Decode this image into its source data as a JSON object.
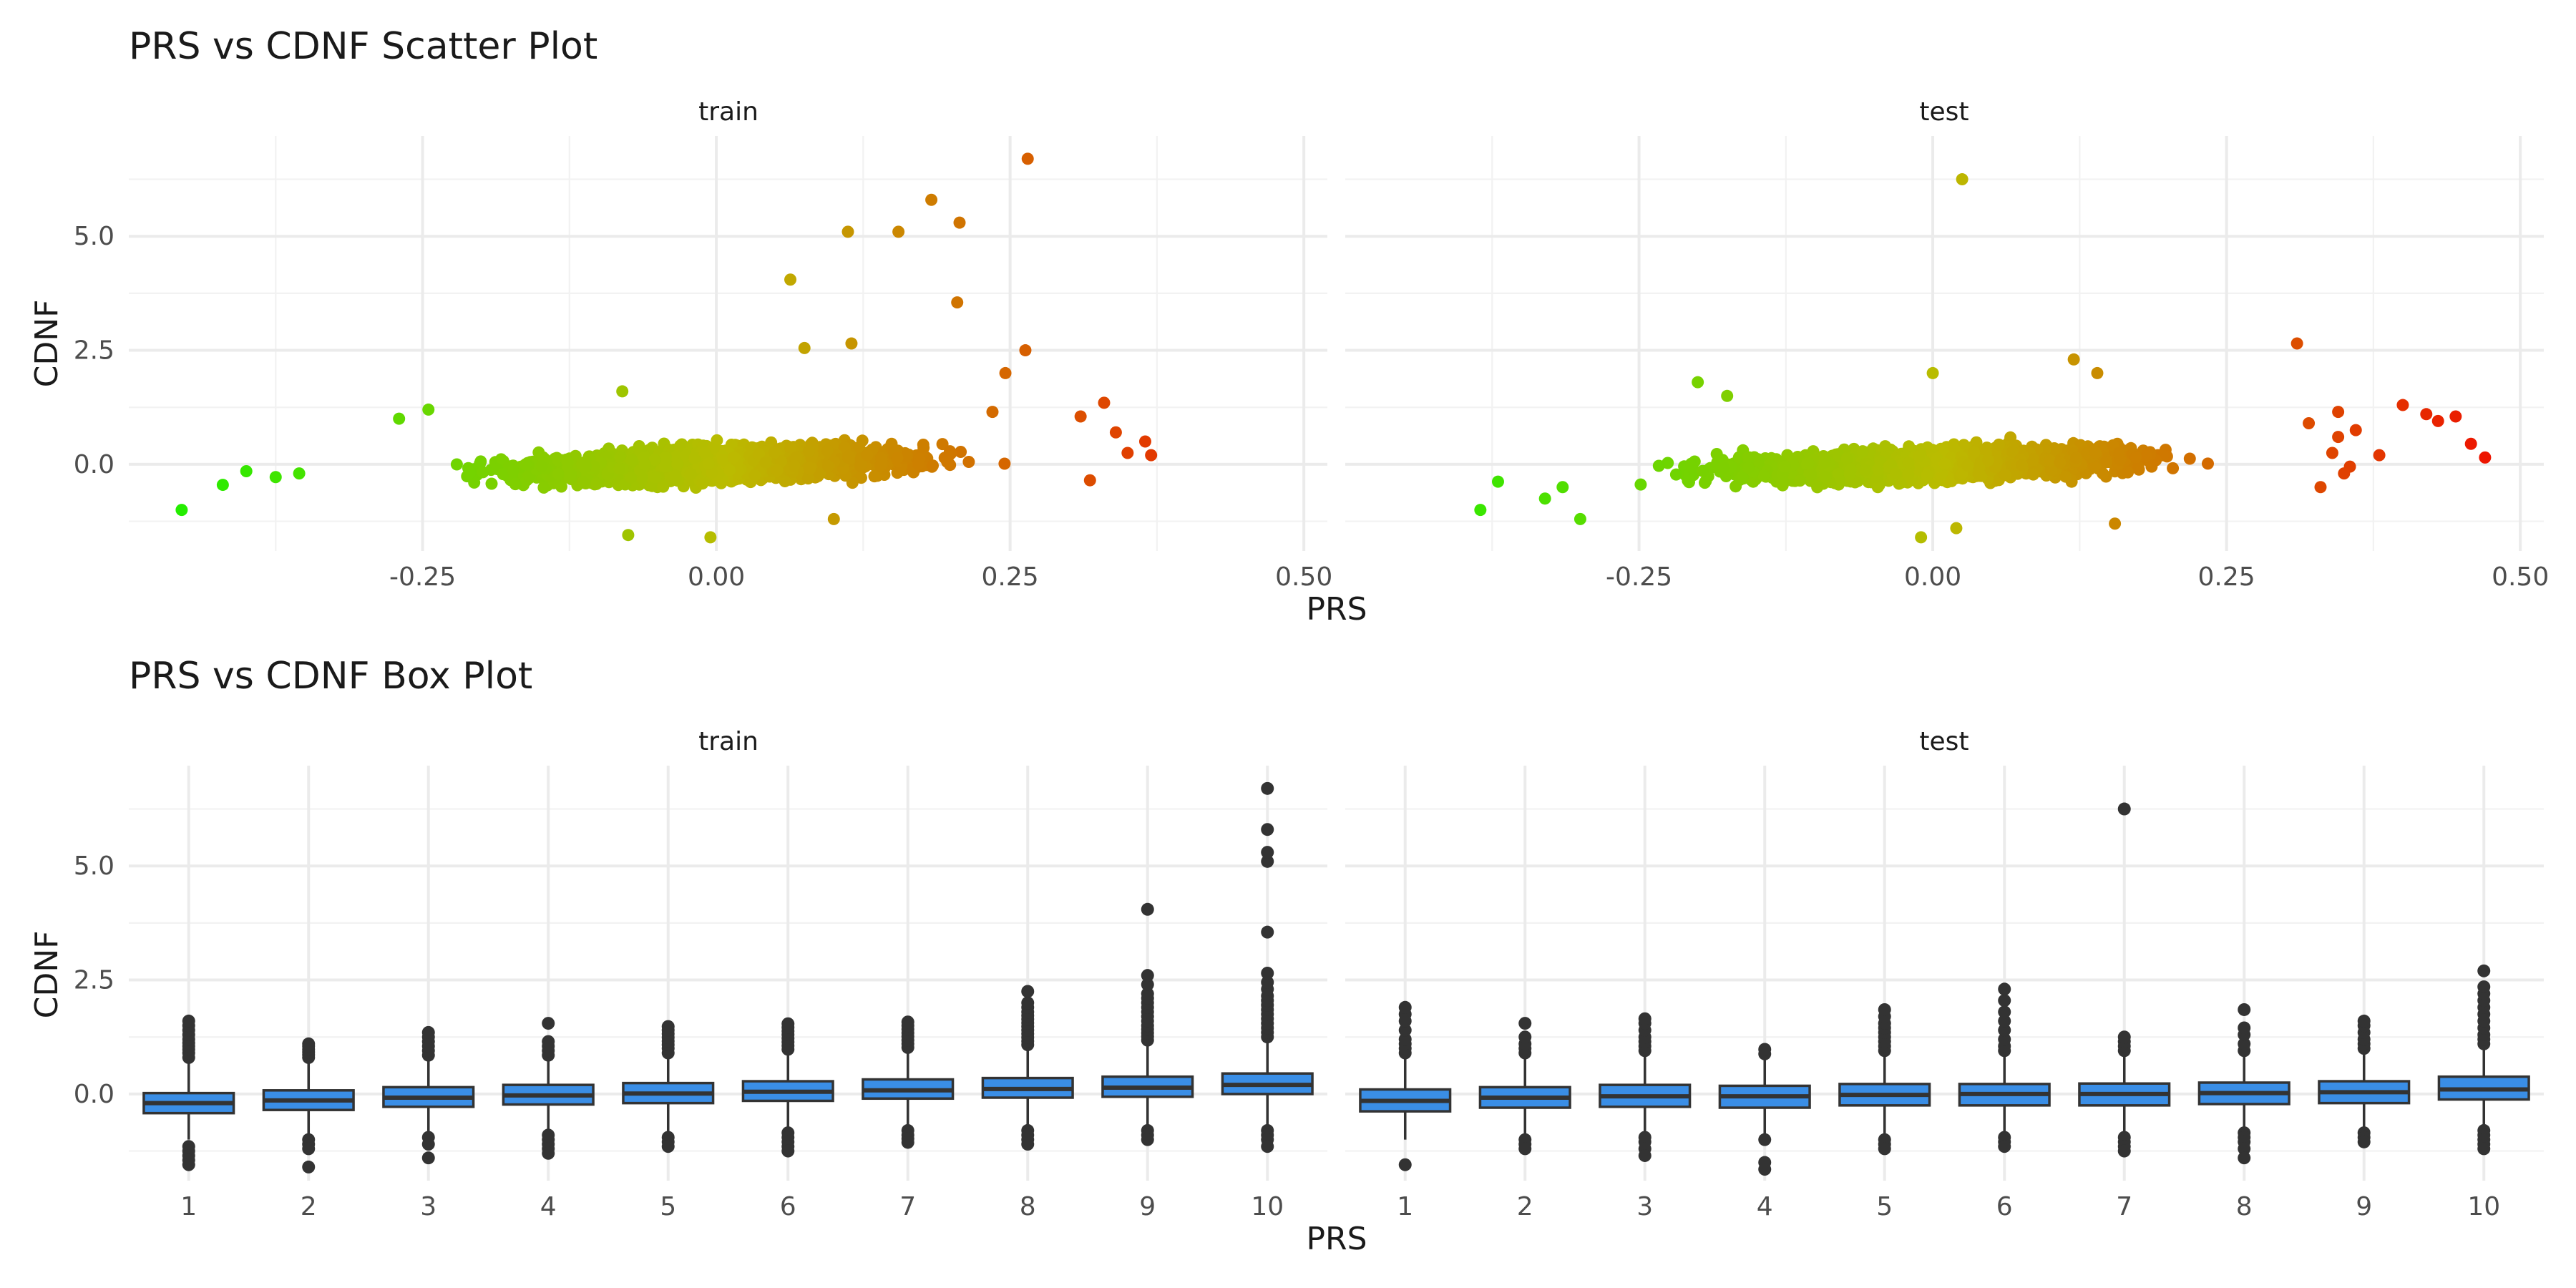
{
  "chart_data": [
    {
      "type": "scatter",
      "title": "PRS vs CDNF Scatter Plot",
      "xlabel": "PRS",
      "ylabel": "CDNF",
      "facets": [
        "train",
        "test"
      ],
      "x_ticks": [
        "-0.25",
        "0.00",
        "0.25",
        "0.50"
      ],
      "y_ticks": [
        "0.0",
        "2.5",
        "5.0"
      ],
      "xlim": [
        -0.5,
        0.52
      ],
      "ylim": [
        -1.9,
        7.2
      ],
      "color_scale": {
        "low": "#22ee00",
        "mid": "#bbbb00",
        "high": "#ee1100"
      },
      "panels": [
        {
          "facet": "train",
          "cloud": {
            "x_range": [
              -0.34,
              0.36
            ],
            "slope": 1.8,
            "intercept": 0.0,
            "sd": 0.42
          },
          "points": [
            [
              -0.455,
              -1.0
            ],
            [
              -0.42,
              -0.45
            ],
            [
              -0.4,
              -0.15
            ],
            [
              -0.375,
              -0.28
            ],
            [
              -0.355,
              -0.2
            ],
            [
              -0.27,
              1.0
            ],
            [
              -0.245,
              1.2
            ],
            [
              0.155,
              5.1
            ],
            [
              0.063,
              4.05
            ],
            [
              0.112,
              5.1
            ],
            [
              0.183,
              5.8
            ],
            [
              0.207,
              5.3
            ],
            [
              0.205,
              3.55
            ],
            [
              0.265,
              6.7
            ],
            [
              0.263,
              2.5
            ],
            [
              0.246,
              2.0
            ],
            [
              0.235,
              1.15
            ],
            [
              0.31,
              1.05
            ],
            [
              0.33,
              1.35
            ],
            [
              0.37,
              0.2
            ],
            [
              0.365,
              0.5
            ],
            [
              0.35,
              0.25
            ],
            [
              0.34,
              0.7
            ],
            [
              0.318,
              -0.35
            ],
            [
              -0.08,
              1.6
            ],
            [
              -0.075,
              -1.55
            ],
            [
              -0.005,
              -1.6
            ],
            [
              0.115,
              2.65
            ],
            [
              0.075,
              2.55
            ],
            [
              0.1,
              -1.2
            ]
          ]
        },
        {
          "facet": "test",
          "cloud": {
            "x_range": [
              -0.3,
              0.38
            ],
            "slope": 1.6,
            "intercept": 0.0,
            "sd": 0.4
          },
          "points": [
            [
              -0.385,
              -1.0
            ],
            [
              -0.37,
              -0.38
            ],
            [
              -0.33,
              -0.75
            ],
            [
              -0.315,
              -0.5
            ],
            [
              -0.3,
              -1.2
            ],
            [
              0.025,
              6.25
            ],
            [
              0.31,
              2.65
            ],
            [
              0.4,
              1.3
            ],
            [
              0.42,
              1.1
            ],
            [
              0.43,
              0.95
            ],
            [
              0.445,
              1.05
            ],
            [
              0.458,
              0.45
            ],
            [
              0.47,
              0.15
            ],
            [
              0.38,
              0.2
            ],
            [
              0.355,
              -0.05
            ],
            [
              0.36,
              0.75
            ],
            [
              0.34,
              0.25
            ],
            [
              0.345,
              0.6
            ],
            [
              0.35,
              -0.2
            ],
            [
              0.33,
              -0.5
            ],
            [
              0.12,
              2.3
            ],
            [
              0.14,
              2.0
            ],
            [
              0.0,
              2.0
            ],
            [
              -0.2,
              1.8
            ],
            [
              -0.01,
              -1.6
            ],
            [
              0.02,
              -1.4
            ],
            [
              0.155,
              -1.3
            ],
            [
              -0.175,
              1.5
            ],
            [
              0.345,
              1.15
            ],
            [
              0.32,
              0.9
            ]
          ]
        }
      ]
    },
    {
      "type": "box",
      "title": "PRS vs CDNF Box Plot",
      "xlabel": "PRS",
      "ylabel": "CDNF",
      "facets": [
        "train",
        "test"
      ],
      "categories": [
        "1",
        "2",
        "3",
        "4",
        "5",
        "6",
        "7",
        "8",
        "9",
        "10"
      ],
      "y_ticks": [
        "0.0",
        "2.5",
        "5.0"
      ],
      "ylim": [
        -1.9,
        7.2
      ],
      "fill": "#3a8ee6",
      "panels": [
        {
          "facet": "train",
          "boxes": [
            {
              "q1": -0.42,
              "med": -0.2,
              "q3": 0.02,
              "lo": -1.0,
              "hi": 0.68,
              "out": [
                0.8,
                0.9,
                0.98,
                1.05,
                1.12,
                1.2,
                1.3,
                1.4,
                1.5,
                1.6,
                -1.15,
                -1.25,
                -1.35,
                -1.45,
                -1.55
              ]
            },
            {
              "q1": -0.35,
              "med": -0.14,
              "q3": 0.08,
              "lo": -0.95,
              "hi": 0.72,
              "out": [
                0.8,
                0.86,
                0.92,
                0.98,
                1.05,
                1.1,
                -1.0,
                -1.1,
                -1.2,
                -1.6
              ]
            },
            {
              "q1": -0.28,
              "med": -0.08,
              "q3": 0.15,
              "lo": -0.9,
              "hi": 0.75,
              "out": [
                0.85,
                0.95,
                1.05,
                1.15,
                1.25,
                1.35,
                -0.95,
                -1.1,
                -1.4
              ]
            },
            {
              "q1": -0.23,
              "med": -0.03,
              "q3": 0.2,
              "lo": -0.85,
              "hi": 0.78,
              "out": [
                0.85,
                0.95,
                1.05,
                1.15,
                1.55,
                -0.9,
                -1.0,
                -1.1,
                -1.2,
                -1.3
              ]
            },
            {
              "q1": -0.2,
              "med": 0.01,
              "q3": 0.24,
              "lo": -0.85,
              "hi": 0.82,
              "out": [
                0.9,
                1.0,
                1.08,
                1.16,
                1.24,
                1.32,
                1.4,
                1.48,
                -0.95,
                -1.05,
                -1.15
              ]
            },
            {
              "q1": -0.15,
              "med": 0.05,
              "q3": 0.28,
              "lo": -0.8,
              "hi": 0.9,
              "out": [
                0.98,
                1.06,
                1.14,
                1.22,
                1.3,
                1.38,
                1.46,
                1.54,
                -0.85,
                -0.95,
                -1.05,
                -1.15,
                -1.25
              ]
            },
            {
              "q1": -0.1,
              "med": 0.08,
              "q3": 0.32,
              "lo": -0.75,
              "hi": 0.95,
              "out": [
                1.02,
                1.1,
                1.18,
                1.26,
                1.34,
                1.42,
                1.5,
                1.58,
                -0.8,
                -0.9,
                -0.98,
                -1.06
              ]
            },
            {
              "q1": -0.08,
              "med": 0.11,
              "q3": 0.35,
              "lo": -0.75,
              "hi": 1.0,
              "out": [
                1.08,
                1.16,
                1.24,
                1.32,
                1.4,
                1.48,
                1.56,
                1.64,
                1.72,
                1.8,
                1.9,
                2.0,
                2.25,
                -0.8,
                -0.9,
                -1.0,
                -1.1
              ]
            },
            {
              "q1": -0.06,
              "med": 0.14,
              "q3": 0.38,
              "lo": -0.75,
              "hi": 1.1,
              "out": [
                1.18,
                1.26,
                1.34,
                1.42,
                1.5,
                1.6,
                1.7,
                1.8,
                1.9,
                2.0,
                2.1,
                2.2,
                2.4,
                2.6,
                4.05,
                -0.8,
                -0.9,
                -1.0
              ]
            },
            {
              "q1": 0.0,
              "med": 0.2,
              "q3": 0.45,
              "lo": -0.7,
              "hi": 1.15,
              "out": [
                1.25,
                1.35,
                1.45,
                1.55,
                1.65,
                1.75,
                1.85,
                1.95,
                2.05,
                2.15,
                2.3,
                2.45,
                2.65,
                3.55,
                5.1,
                5.3,
                5.8,
                6.7,
                -0.8,
                -0.9,
                -1.0,
                -1.15
              ]
            }
          ]
        },
        {
          "facet": "test",
          "boxes": [
            {
              "q1": -0.38,
              "med": -0.15,
              "q3": 0.1,
              "lo": -1.0,
              "hi": 0.82,
              "out": [
                0.9,
                1.0,
                1.1,
                1.2,
                1.4,
                1.6,
                1.75,
                1.9,
                -1.55
              ]
            },
            {
              "q1": -0.3,
              "med": -0.08,
              "q3": 0.15,
              "lo": -0.95,
              "hi": 0.8,
              "out": [
                0.9,
                1.0,
                1.1,
                1.25,
                1.55,
                -1.0,
                -1.1,
                -1.2
              ]
            },
            {
              "q1": -0.28,
              "med": -0.05,
              "q3": 0.2,
              "lo": -0.9,
              "hi": 0.85,
              "out": [
                0.95,
                1.05,
                1.15,
                1.25,
                1.4,
                1.55,
                1.65,
                -0.95,
                -1.05,
                -1.2,
                -1.35
              ]
            },
            {
              "q1": -0.3,
              "med": -0.05,
              "q3": 0.18,
              "lo": -0.9,
              "hi": 0.78,
              "out": [
                0.88,
                0.98,
                -1.0,
                -1.5,
                -1.65
              ]
            },
            {
              "q1": -0.25,
              "med": -0.02,
              "q3": 0.22,
              "lo": -0.95,
              "hi": 0.85,
              "out": [
                0.95,
                1.05,
                1.15,
                1.25,
                1.35,
                1.45,
                1.55,
                1.7,
                1.85,
                -1.0,
                -1.1,
                -1.2
              ]
            },
            {
              "q1": -0.25,
              "med": 0.0,
              "q3": 0.22,
              "lo": -0.9,
              "hi": 0.85,
              "out": [
                0.95,
                1.05,
                1.2,
                1.4,
                1.6,
                1.8,
                2.05,
                2.3,
                -0.95,
                -1.05,
                -1.15
              ]
            },
            {
              "q1": -0.25,
              "med": 0.0,
              "q3": 0.23,
              "lo": -0.9,
              "hi": 0.85,
              "out": [
                0.95,
                1.05,
                1.15,
                1.25,
                6.25,
                -0.95,
                -1.05,
                -1.15,
                -1.25
              ]
            },
            {
              "q1": -0.22,
              "med": 0.02,
              "q3": 0.25,
              "lo": -0.8,
              "hi": 0.85,
              "out": [
                0.95,
                1.1,
                1.3,
                1.45,
                1.85,
                -0.85,
                -0.95,
                -1.05,
                -1.2,
                -1.4
              ]
            },
            {
              "q1": -0.2,
              "med": 0.04,
              "q3": 0.28,
              "lo": -0.8,
              "hi": 0.9,
              "out": [
                1.0,
                1.1,
                1.2,
                1.35,
                1.5,
                1.6,
                -0.85,
                -0.95,
                -1.05
              ]
            },
            {
              "q1": -0.12,
              "med": 0.1,
              "q3": 0.38,
              "lo": -0.75,
              "hi": 1.0,
              "out": [
                1.1,
                1.2,
                1.3,
                1.45,
                1.6,
                1.75,
                1.9,
                2.05,
                2.2,
                2.35,
                2.7,
                -0.8,
                -0.9,
                -1.0,
                -1.1,
                -1.2
              ]
            }
          ]
        }
      ]
    }
  ]
}
